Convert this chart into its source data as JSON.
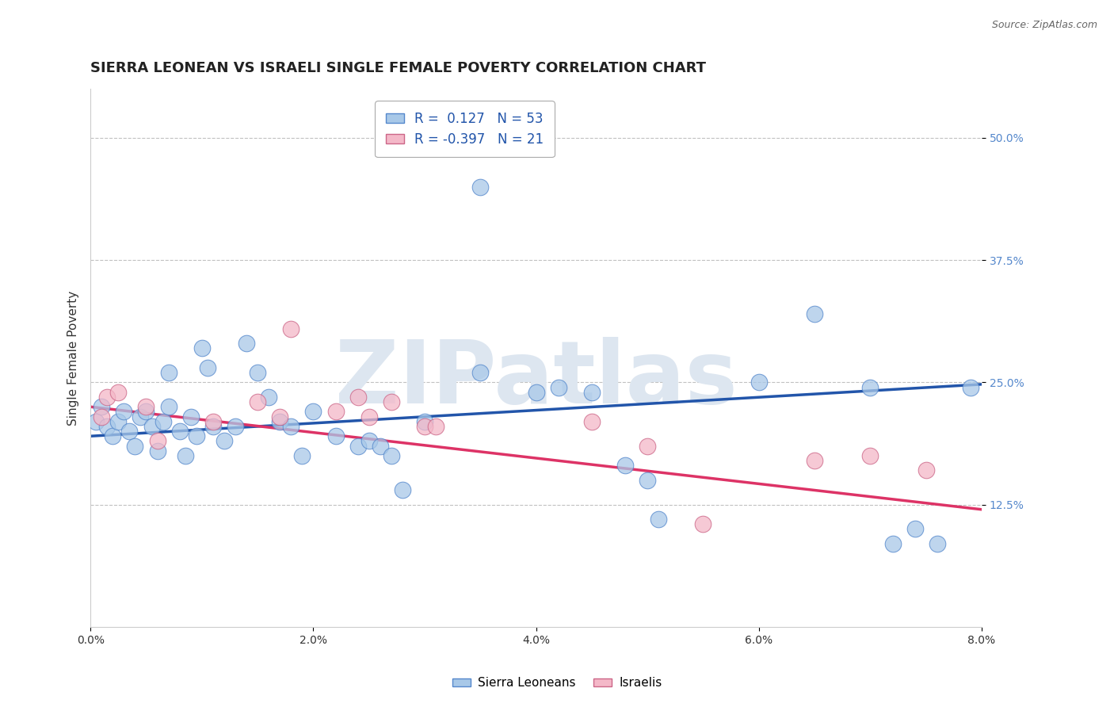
{
  "title": "SIERRA LEONEAN VS ISRAELI SINGLE FEMALE POVERTY CORRELATION CHART",
  "source": "Source: ZipAtlas.com",
  "xlabel_vals": [
    0.0,
    2.0,
    4.0,
    6.0,
    8.0
  ],
  "ylabel_vals": [
    12.5,
    25.0,
    37.5,
    50.0
  ],
  "xlim": [
    0.0,
    8.0
  ],
  "ylim": [
    0.0,
    55.0
  ],
  "legend_labels": [
    "Sierra Leoneans",
    "Israelis"
  ],
  "R_blue": 0.127,
  "N_blue": 53,
  "R_pink": -0.397,
  "N_pink": 21,
  "blue_color": "#a8c8e8",
  "pink_color": "#f4b8c8",
  "blue_edge_color": "#5588cc",
  "pink_edge_color": "#cc6688",
  "blue_line_color": "#2255aa",
  "pink_line_color": "#dd3366",
  "background_color": "#ffffff",
  "grid_color": "#bbbbbb",
  "watermark_color": "#dde6f0",
  "blue_scatter": {
    "x": [
      0.05,
      0.1,
      0.15,
      0.2,
      0.25,
      0.3,
      0.35,
      0.4,
      0.45,
      0.5,
      0.55,
      0.6,
      0.65,
      0.7,
      0.7,
      0.8,
      0.85,
      0.9,
      0.95,
      1.0,
      1.05,
      1.1,
      1.2,
      1.3,
      1.4,
      1.5,
      1.6,
      1.7,
      1.8,
      1.9,
      2.0,
      2.2,
      2.4,
      2.5,
      2.6,
      2.7,
      2.8,
      3.0,
      3.5,
      3.5,
      4.0,
      4.2,
      4.5,
      4.8,
      5.0,
      5.1,
      6.0,
      6.5,
      7.0,
      7.2,
      7.4,
      7.6,
      7.9
    ],
    "y": [
      21.0,
      22.5,
      20.5,
      19.5,
      21.0,
      22.0,
      20.0,
      18.5,
      21.5,
      22.0,
      20.5,
      18.0,
      21.0,
      22.5,
      26.0,
      20.0,
      17.5,
      21.5,
      19.5,
      28.5,
      26.5,
      20.5,
      19.0,
      20.5,
      29.0,
      26.0,
      23.5,
      21.0,
      20.5,
      17.5,
      22.0,
      19.5,
      18.5,
      19.0,
      18.5,
      17.5,
      14.0,
      21.0,
      45.0,
      26.0,
      24.0,
      24.5,
      24.0,
      16.5,
      15.0,
      11.0,
      25.0,
      32.0,
      24.5,
      8.5,
      10.0,
      8.5,
      24.5
    ]
  },
  "pink_scatter": {
    "x": [
      0.1,
      0.15,
      0.25,
      0.5,
      0.6,
      1.1,
      1.5,
      1.7,
      1.8,
      2.2,
      2.4,
      2.5,
      2.7,
      3.0,
      3.1,
      4.5,
      5.0,
      5.5,
      6.5,
      7.0,
      7.5
    ],
    "y": [
      21.5,
      23.5,
      24.0,
      22.5,
      19.0,
      21.0,
      23.0,
      21.5,
      30.5,
      22.0,
      23.5,
      21.5,
      23.0,
      20.5,
      20.5,
      21.0,
      18.5,
      10.5,
      17.0,
      17.5,
      16.0
    ]
  },
  "title_fontsize": 13,
  "axis_label_fontsize": 11,
  "tick_fontsize": 10,
  "legend_fontsize": 12
}
